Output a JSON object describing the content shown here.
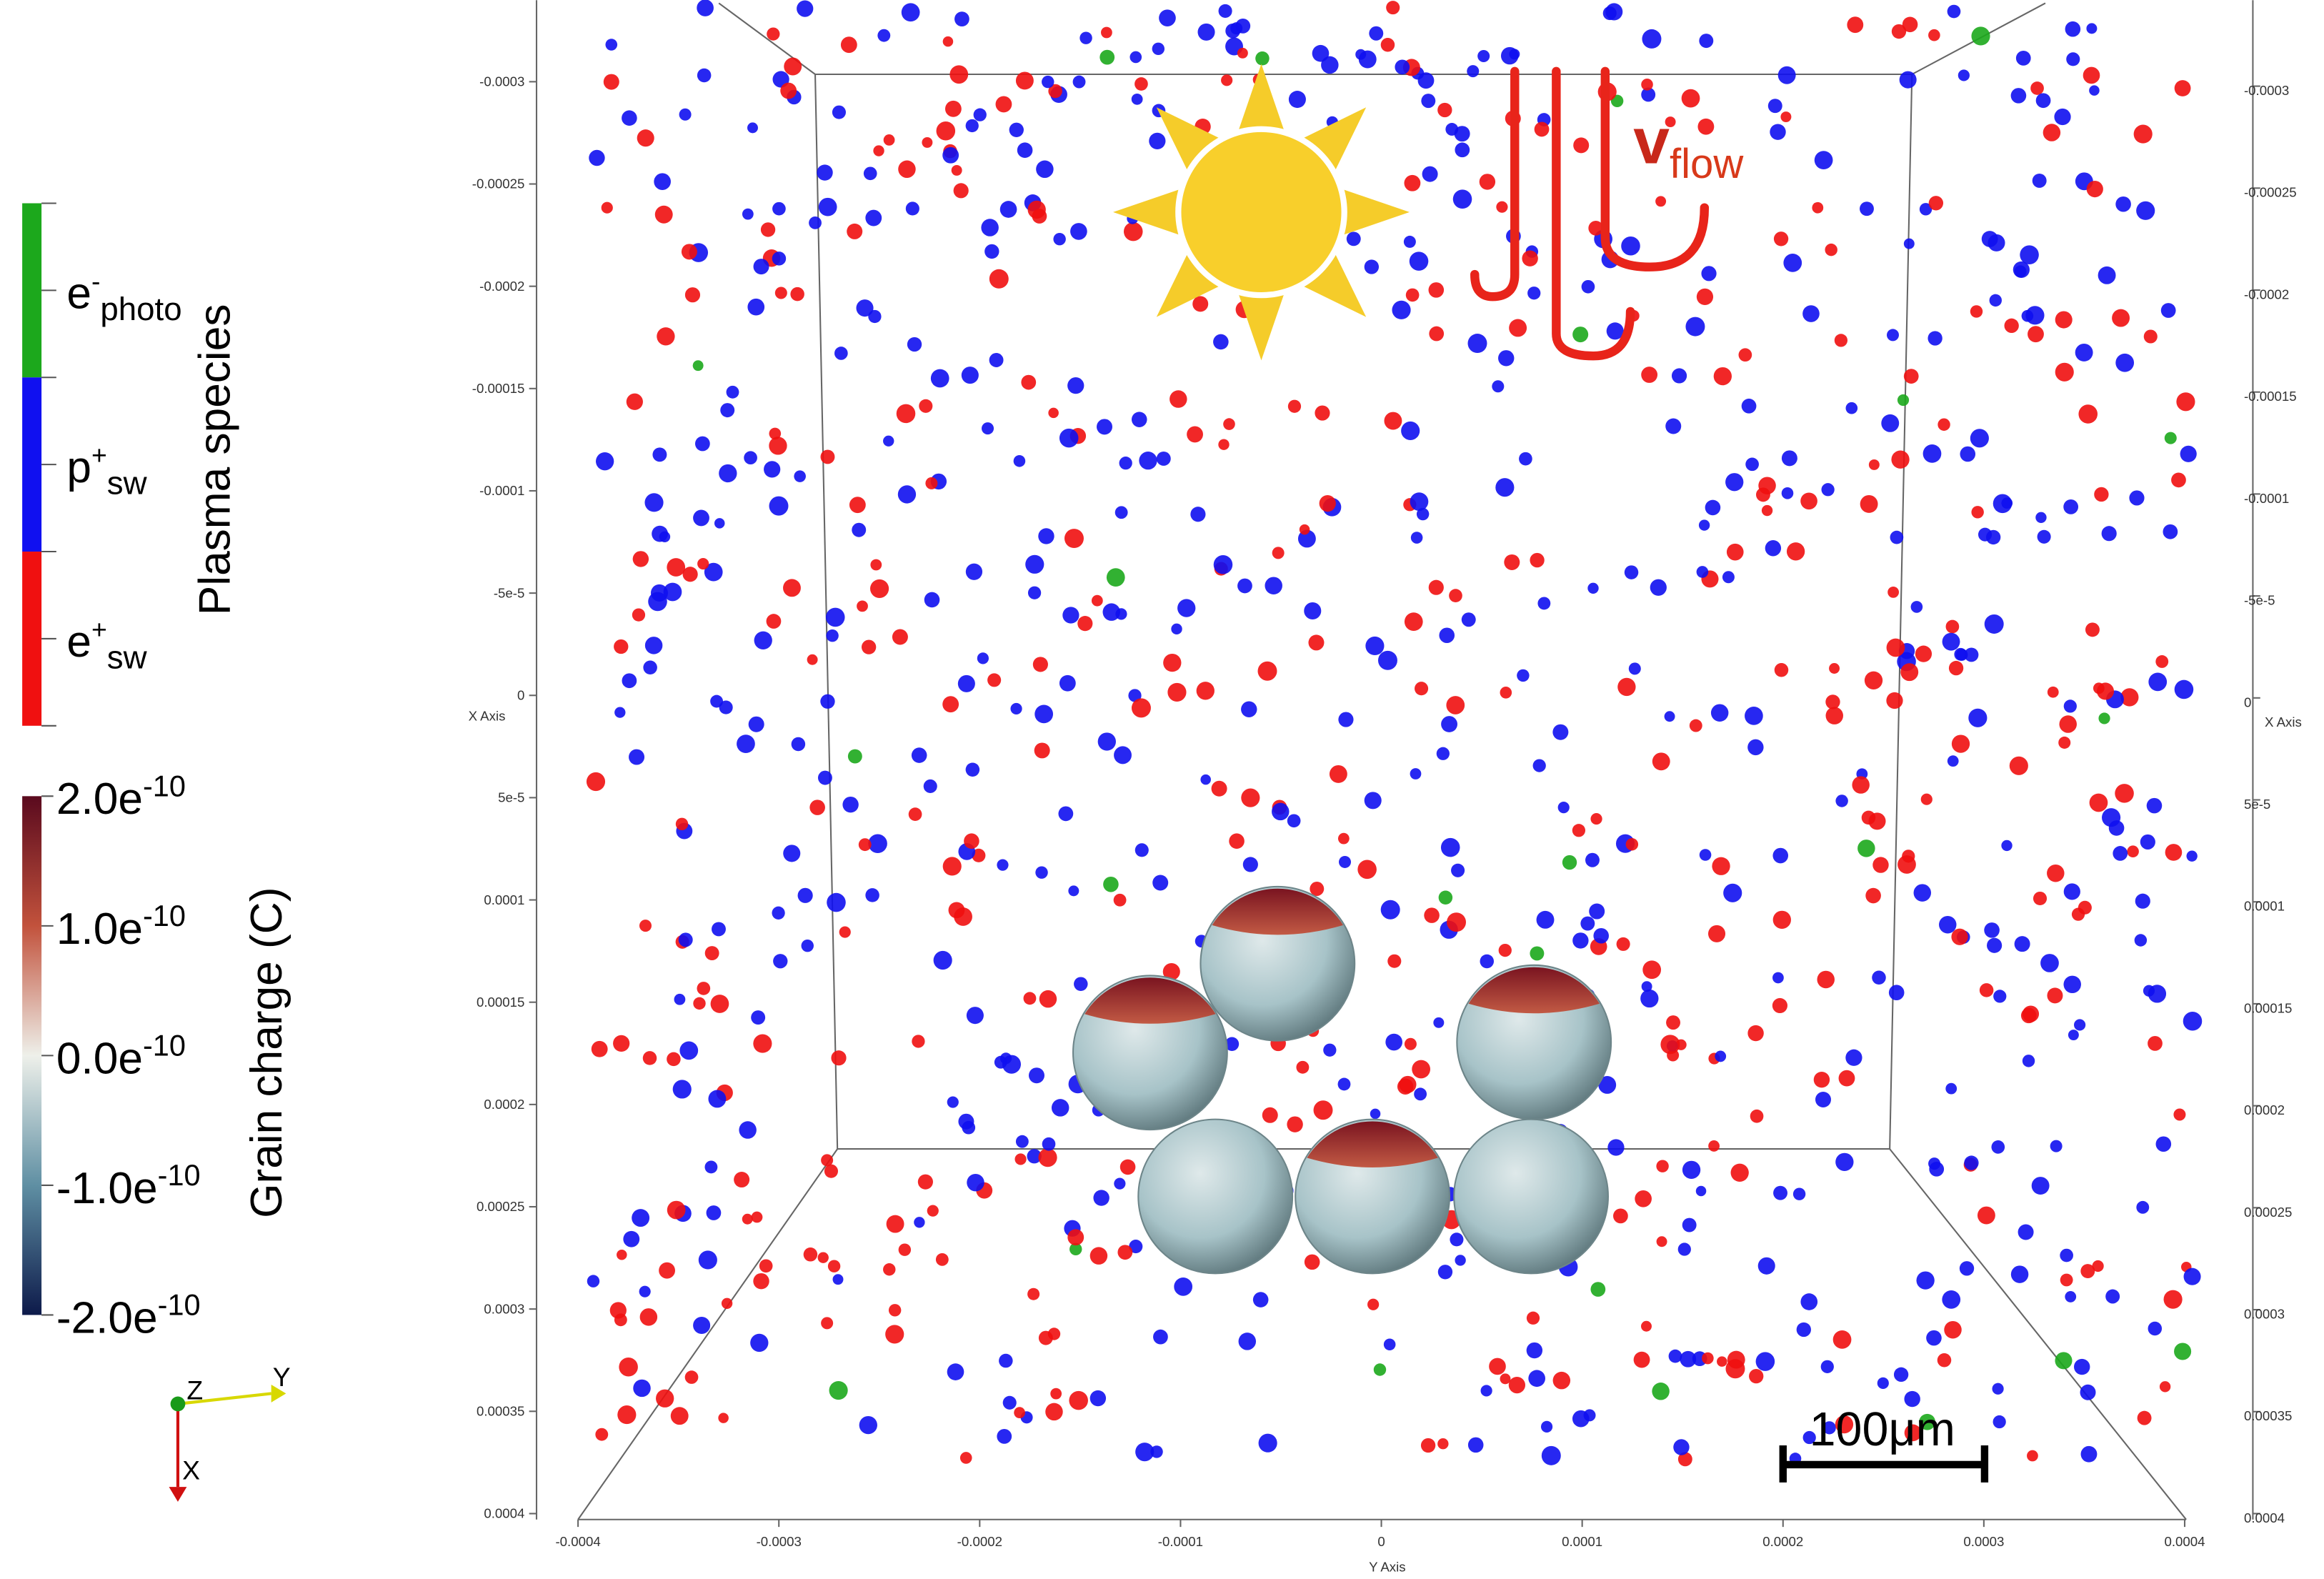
{
  "species_legend": {
    "title": "Plasma species",
    "entries": [
      {
        "base": "e",
        "sup": "-",
        "sub": "photo",
        "color": "#1ca81c"
      },
      {
        "base": "p",
        "sup": "+",
        "sub": "sw",
        "color": "#1010f0"
      },
      {
        "base": "e",
        "sup": "+",
        "sub": "sw",
        "color": "#f01010"
      }
    ]
  },
  "charge_colorbar": {
    "title": "Grain charge (C)",
    "ticks": [
      {
        "base": "2.0e",
        "exp": "-10"
      },
      {
        "base": "1.0e",
        "exp": "-10"
      },
      {
        "base": "0.0e",
        "exp": "-10"
      },
      {
        "base": "-1.0e",
        "exp": "-10"
      },
      {
        "base": "-2.0e",
        "exp": "-10"
      }
    ]
  },
  "orientation": {
    "z": "Z",
    "y": "Y",
    "x": "X"
  },
  "x_axis": {
    "title": "X Axis",
    "left_ticks": [
      "-0.0003",
      "-0.00025",
      "-0.0002",
      "-0.00015",
      "-0.0001",
      "-5e-5",
      "0",
      "5e-5",
      "0.0001",
      "0.00015",
      "0.0002",
      "0.00025",
      "0.0003",
      "0.00035",
      "0.0004"
    ],
    "right_ticks": [
      "-0.0003",
      "-0.00025",
      "-0.0002",
      "-0.00015",
      "-0.0001",
      "-5e-5",
      "0",
      "5e-5",
      "0.0001",
      "0.00015",
      "0.0002",
      "0.00025",
      "0.0003",
      "0.00035",
      "0.0004"
    ]
  },
  "y_axis": {
    "title": "Y Axis",
    "ticks": [
      "-0.0004",
      "-0.0003",
      "-0.0002",
      "-0.0001",
      "0",
      "0.0001",
      "0.0002",
      "0.0003",
      "0.0004"
    ]
  },
  "flow_label": {
    "base": "v",
    "sub": "flow"
  },
  "scale_bar": "100μm"
}
